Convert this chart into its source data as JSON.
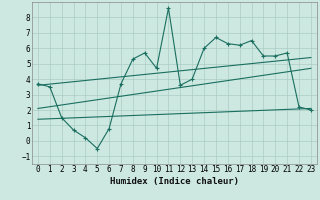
{
  "title": "",
  "xlabel": "Humidex (Indice chaleur)",
  "ylabel": "",
  "background_color": "#cce8e0",
  "grid_color": "#aaccc4",
  "line_color": "#1a6e60",
  "xlim": [
    -0.5,
    23.5
  ],
  "ylim": [
    -1.5,
    9.0
  ],
  "xticks": [
    0,
    1,
    2,
    3,
    4,
    5,
    6,
    7,
    8,
    9,
    10,
    11,
    12,
    13,
    14,
    15,
    16,
    17,
    18,
    19,
    20,
    21,
    22,
    23
  ],
  "yticks": [
    -1,
    0,
    1,
    2,
    3,
    4,
    5,
    6,
    7,
    8
  ],
  "main_x": [
    0,
    1,
    2,
    3,
    4,
    5,
    6,
    7,
    8,
    9,
    10,
    11,
    12,
    13,
    14,
    15,
    16,
    17,
    18,
    19,
    20,
    21,
    22,
    23
  ],
  "main_y": [
    3.7,
    3.5,
    1.5,
    0.7,
    0.2,
    -0.5,
    0.8,
    3.7,
    5.3,
    5.7,
    4.7,
    8.6,
    3.6,
    4.0,
    6.0,
    6.7,
    6.3,
    6.2,
    6.5,
    5.5,
    5.5,
    5.7,
    2.2,
    2.0
  ],
  "upper_trend_x": [
    0,
    23
  ],
  "upper_trend_y": [
    3.6,
    5.4
  ],
  "lower_trend_x": [
    0,
    23
  ],
  "lower_trend_y": [
    1.4,
    2.1
  ],
  "mid_trend_x": [
    0,
    23
  ],
  "mid_trend_y": [
    2.1,
    4.7
  ],
  "tick_fontsize": 5.5,
  "xlabel_fontsize": 6.5
}
